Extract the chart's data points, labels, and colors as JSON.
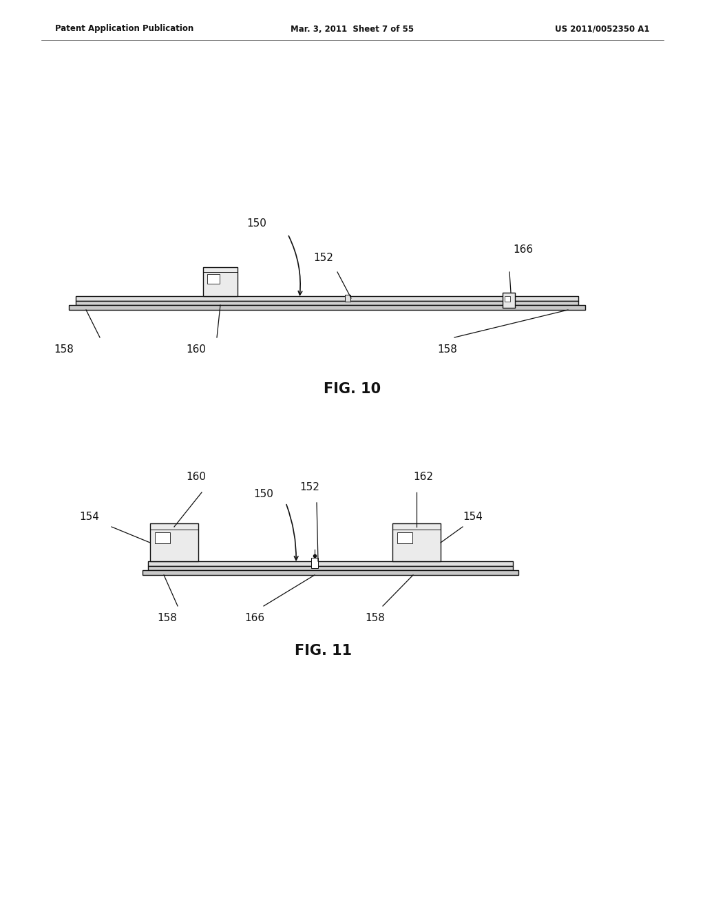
{
  "bg_color": "#ffffff",
  "header_left": "Patent Application Publication",
  "header_mid": "Mar. 3, 2011  Sheet 7 of 55",
  "header_right": "US 2011/0052350 A1",
  "fig10_label": "FIG. 10",
  "fig11_label": "FIG. 11",
  "dark": "#111111",
  "light_gray": "#cccccc",
  "mid_gray": "#aaaaaa",
  "header_fontsize": 8.5,
  "label_fontsize": 11,
  "caption_fontsize": 15
}
